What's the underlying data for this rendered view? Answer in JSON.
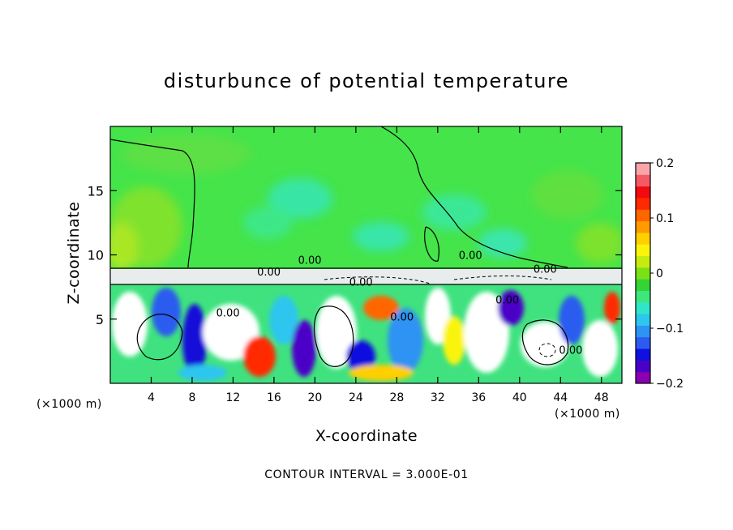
{
  "chart_data": {
    "type": "heatmap",
    "title": "disturbunce of potential temperature",
    "xlabel": "X-coordinate",
    "ylabel": "Z-coordinate",
    "x_unit_label": "(×1000 m)",
    "z_unit_label": "(×1000 m)",
    "xlim": [
      0,
      50
    ],
    "ylim": [
      0,
      20
    ],
    "x_ticks": [
      4,
      8,
      12,
      16,
      20,
      24,
      28,
      32,
      36,
      40,
      44,
      48
    ],
    "y_ticks": [
      5,
      10,
      15
    ],
    "colorbar": {
      "range": [
        -0.2,
        0.2
      ],
      "tick_labels": [
        "0.2",
        "0.1",
        "0",
        "−0.1",
        "−0.2"
      ],
      "tick_values": [
        0.2,
        0.1,
        0,
        -0.1,
        -0.2
      ],
      "colors": [
        "#8B00B0",
        "#4B00C8",
        "#1010E0",
        "#2C5BF0",
        "#2E93F2",
        "#2DC6EE",
        "#2FE6C8",
        "#3EE67E",
        "#33D436",
        "#78E216",
        "#C6EB10",
        "#FAF40C",
        "#FFCF00",
        "#FF9A00",
        "#FF6600",
        "#FF2A00",
        "#F30A10",
        "#F55A64",
        "#FAA6A8"
      ]
    },
    "contour_labels": [
      {
        "text": "0.00",
        "x": 19.5,
        "z": 9.3
      },
      {
        "text": "0.00",
        "x": 15.5,
        "z": 8.4
      },
      {
        "text": "0.00",
        "x": 24.5,
        "z": 7.6
      },
      {
        "text": "0.00",
        "x": 11.5,
        "z": 5.2
      },
      {
        "text": "0.00",
        "x": 28.5,
        "z": 4.9
      },
      {
        "text": "0.00",
        "x": 35.2,
        "z": 9.7
      },
      {
        "text": "0.00",
        "x": 42.5,
        "z": 8.6
      },
      {
        "text": "0.00",
        "x": 38.8,
        "z": 6.2
      },
      {
        "text": "0.00",
        "x": 45.0,
        "z": 2.3
      }
    ]
  },
  "footer": "CONTOUR INTERVAL = 3.000E-01"
}
